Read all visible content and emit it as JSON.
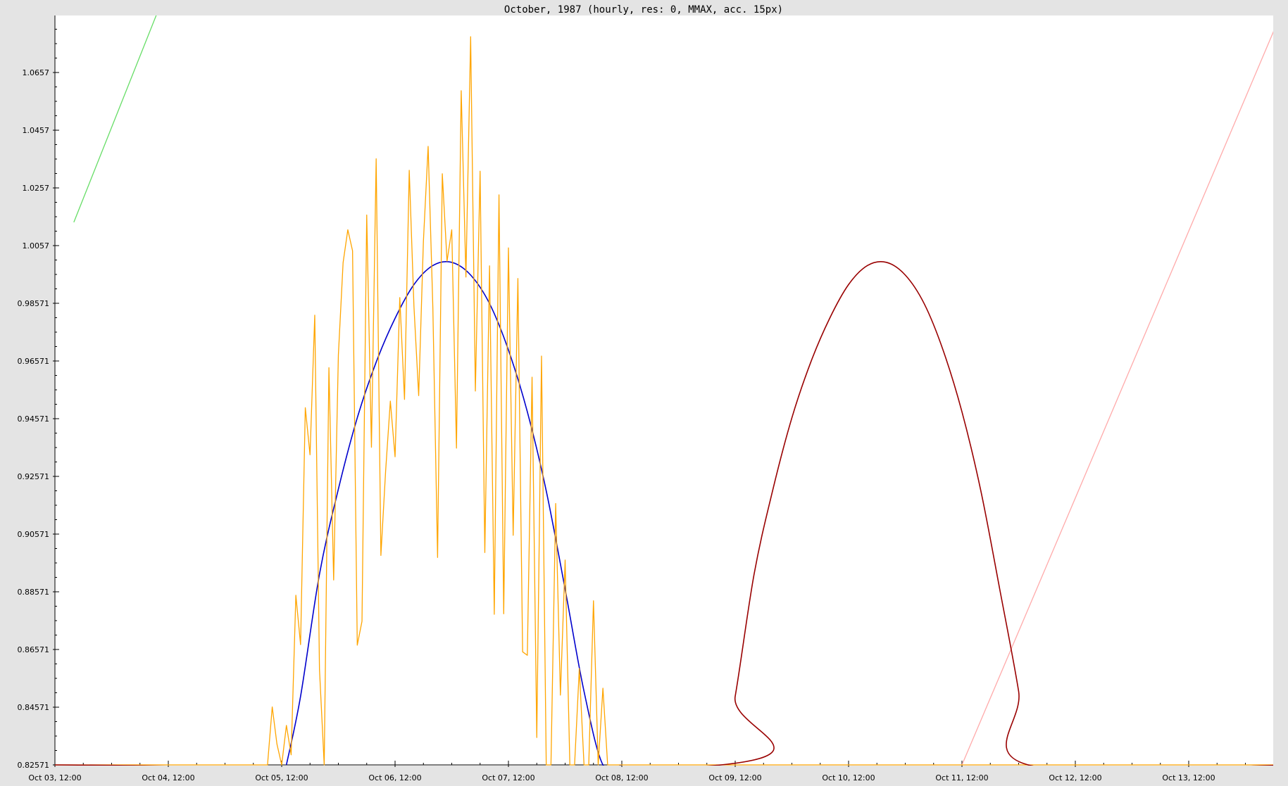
{
  "window": {
    "title": "October, 1987 (hourly, res: 0, MMAX, acc. 15px)"
  },
  "chart_data": {
    "type": "line",
    "title": "October, 1987 (hourly, res: 0, MMAX, acc. 15px)",
    "xlabel": "",
    "ylabel": "",
    "grid": false,
    "legend": "none",
    "x_axis": {
      "unit": "hours",
      "start": "1987-10-03 12:00",
      "range": [
        "1987-10-03 12:00",
        "1987-10-14 10:00"
      ],
      "tick_labels": [
        "Oct 03, 12:00",
        "Oct 04, 12:00",
        "Oct 05, 12:00",
        "Oct 06, 12:00",
        "Oct 07, 12:00",
        "Oct 08, 12:00",
        "Oct 09, 12:00",
        "Oct 10, 12:00",
        "Oct 11, 12:00",
        "Oct 12, 12:00",
        "Oct 13, 12:00"
      ]
    },
    "y_axis": {
      "range": [
        0.82571,
        1.08571
      ],
      "tick_labels": [
        "0.82571",
        "0.84571",
        "0.86571",
        "0.88571",
        "0.90571",
        "0.92571",
        "0.94571",
        "0.96571",
        "0.98571",
        "1.0057",
        "1.0257",
        "1.0457",
        "1.0657"
      ],
      "tick_values": [
        0.82571,
        0.84571,
        0.86571,
        0.88571,
        0.90571,
        0.92571,
        0.94571,
        0.96571,
        0.98571,
        1.0057,
        1.0257,
        1.0457,
        1.0657
      ]
    },
    "series": [
      {
        "color": "#66dd66",
        "style": "line",
        "x": [
          "1987-10-03 16:00",
          "1987-10-04 10:00"
        ],
        "y": [
          1.0138,
          1.0878
        ]
      },
      {
        "color": "#ffaaaa",
        "style": "line",
        "x": [
          "1987-10-11 12:00",
          "1987-10-14 08:00"
        ],
        "y": [
          0.82571,
          1.0878
        ]
      },
      {
        "color": "#0000cc",
        "style": "curve",
        "x": [
          "1987-10-05 13:00",
          "1987-10-05 16:00",
          "1987-10-05 20:00",
          "1987-10-06 00:00",
          "1987-10-06 04:00",
          "1987-10-06 08:00",
          "1987-10-06 12:00",
          "1987-10-06 16:00",
          "1987-10-06 20:00",
          "1987-10-07 00:00",
          "1987-10-07 04:00",
          "1987-10-07 08:00",
          "1987-10-07 12:00",
          "1987-10-07 16:00",
          "1987-10-07 20:00",
          "1987-10-08 00:00",
          "1987-10-08 04:00",
          "1987-10-08 08:00",
          "1987-10-08 12:00"
        ],
        "y": [
          0.82571,
          0.8495,
          0.8918,
          0.9213,
          0.946,
          0.9653,
          0.9805,
          0.9922,
          0.9988,
          0.9999,
          0.9955,
          0.9856,
          0.9695,
          0.9481,
          0.9207,
          0.8866,
          0.8512,
          0.82571,
          0.82571
        ]
      },
      {
        "color": "#ffa500",
        "style": "line",
        "x": [
          "1987-10-03 12:00",
          "1987-10-05 09:00",
          "1987-10-05 10:00",
          "1987-10-05 11:00",
          "1987-10-05 12:00",
          "1987-10-05 13:00",
          "1987-10-05 14:00",
          "1987-10-05 15:00",
          "1987-10-05 16:00",
          "1987-10-05 17:00",
          "1987-10-05 18:00",
          "1987-10-05 19:00",
          "1987-10-05 20:00",
          "1987-10-05 21:00",
          "1987-10-05 22:00",
          "1987-10-05 23:00",
          "1987-10-06 00:00",
          "1987-10-06 01:00",
          "1987-10-06 02:00",
          "1987-10-06 03:00",
          "1987-10-06 04:00",
          "1987-10-06 05:00",
          "1987-10-06 06:00",
          "1987-10-06 07:00",
          "1987-10-06 08:00",
          "1987-10-06 09:00",
          "1987-10-06 10:00",
          "1987-10-06 11:00",
          "1987-10-06 12:00",
          "1987-10-06 13:00",
          "1987-10-06 14:00",
          "1987-10-06 15:00",
          "1987-10-06 16:00",
          "1987-10-06 17:00",
          "1987-10-06 18:00",
          "1987-10-06 19:00",
          "1987-10-06 20:00",
          "1987-10-06 21:00",
          "1987-10-06 22:00",
          "1987-10-06 23:00",
          "1987-10-07 00:00",
          "1987-10-07 01:00",
          "1987-10-07 02:00",
          "1987-10-07 03:00",
          "1987-10-07 04:00",
          "1987-10-07 05:00",
          "1987-10-07 06:00",
          "1987-10-07 07:00",
          "1987-10-07 08:00",
          "1987-10-07 09:00",
          "1987-10-07 10:00",
          "1987-10-07 11:00",
          "1987-10-07 12:00",
          "1987-10-07 13:00",
          "1987-10-07 14:00",
          "1987-10-07 15:00",
          "1987-10-07 16:00",
          "1987-10-07 17:00",
          "1987-10-07 18:00",
          "1987-10-07 19:00",
          "1987-10-07 20:00",
          "1987-10-07 21:00",
          "1987-10-07 22:00",
          "1987-10-07 23:00",
          "1987-10-08 00:00",
          "1987-10-08 01:00",
          "1987-10-08 02:00",
          "1987-10-08 03:00",
          "1987-10-08 04:00",
          "1987-10-08 05:00",
          "1987-10-08 06:00",
          "1987-10-08 07:00",
          "1987-10-08 08:00",
          "1987-10-08 09:00",
          "1987-10-08 10:00",
          "1987-10-08 11:00",
          "1987-10-08 12:00",
          "1987-10-08 13:00",
          "1987-10-08 14:00",
          "1987-10-08 15:00",
          "1987-10-14 10:00"
        ],
        "y": [
          0.82571,
          0.82571,
          0.8458,
          0.8329,
          0.82571,
          0.8394,
          0.8292,
          0.8845,
          0.8674,
          0.9495,
          0.9332,
          0.9816,
          0.8588,
          0.82571,
          0.9634,
          0.8898,
          0.9678,
          0.9998,
          1.0112,
          1.0039,
          0.8672,
          0.8755,
          1.0163,
          0.9358,
          1.0358,
          0.8983,
          0.9275,
          0.9518,
          0.9325,
          0.9877,
          0.9524,
          1.0318,
          0.9846,
          0.9537,
          1.0072,
          1.0401,
          0.9841,
          0.8976,
          1.0306,
          1.0003,
          1.0112,
          0.9355,
          1.0594,
          0.9948,
          1.0781,
          0.9553,
          1.0315,
          0.8993,
          0.9987,
          0.8779,
          1.0233,
          0.8781,
          1.0049,
          0.9053,
          0.9943,
          0.8649,
          0.8637,
          0.9601,
          0.8352,
          0.9674,
          0.82571,
          0.82571,
          0.9163,
          0.8499,
          0.8967,
          0.82571,
          0.82571,
          0.8591,
          0.82571,
          0.82571,
          0.8826,
          0.82571,
          0.8523,
          0.82571,
          0.82571,
          0.82571,
          0.82571,
          0.82571,
          0.82571,
          0.82571,
          0.82571
        ]
      },
      {
        "color": "#990000",
        "style": "curve",
        "x": [
          "1987-10-03 12:00",
          "1987-10-09 09:00",
          "1987-10-09 12:00",
          "1987-10-09 16:00",
          "1987-10-09 20:00",
          "1987-10-10 00:00",
          "1987-10-10 04:00",
          "1987-10-10 08:00",
          "1987-10-10 12:00",
          "1987-10-10 16:00",
          "1987-10-10 20:00",
          "1987-10-11 00:00",
          "1987-10-11 04:00",
          "1987-10-11 08:00",
          "1987-10-11 12:00",
          "1987-10-11 16:00",
          "1987-10-11 20:00",
          "1987-10-12 00:00",
          "1987-10-12 02:00",
          "1987-10-14 10:00"
        ],
        "y": [
          0.82571,
          0.82571,
          0.8495,
          0.8918,
          0.9213,
          0.946,
          0.9653,
          0.9805,
          0.9922,
          0.9988,
          0.9999,
          0.9955,
          0.9856,
          0.9695,
          0.9481,
          0.9207,
          0.8866,
          0.8512,
          0.82571,
          0.82571
        ]
      }
    ]
  }
}
